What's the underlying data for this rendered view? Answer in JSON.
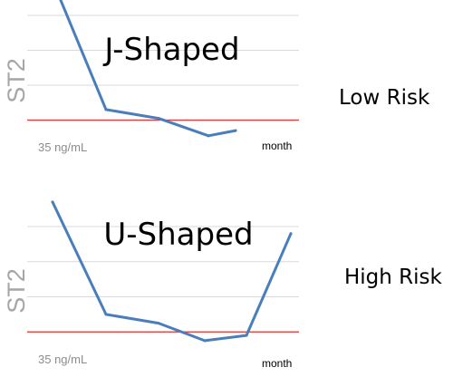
{
  "colors": {
    "series": "#4a7ebb",
    "reference": "#e5312f",
    "grid": "#d9d9d9"
  },
  "chart_data": [
    {
      "type": "line",
      "title": "J-Shaped",
      "ylabel": "ST2",
      "xlabel": "month",
      "ylim": [
        0,
        8
      ],
      "reference_line": {
        "value": 2,
        "label": "35 ng/mL"
      },
      "series": [
        {
          "x": [
            0,
            1,
            2,
            3,
            4
          ],
          "values": [
            10,
            2.6,
            2.1,
            1.1,
            1.4
          ]
        }
      ],
      "side_label": "Low Risk"
    },
    {
      "type": "line",
      "title": "U-Shaped",
      "ylabel": "ST2",
      "xlabel": "month",
      "ylim": [
        0,
        8
      ],
      "reference_line": {
        "value": 2,
        "label": "35 ng/mL"
      },
      "series": [
        {
          "x": [
            0,
            1,
            2,
            3,
            4,
            5
          ],
          "values": [
            9.4,
            3.0,
            2.5,
            1.5,
            1.8,
            7.6
          ]
        }
      ],
      "side_label": "High Risk"
    }
  ]
}
